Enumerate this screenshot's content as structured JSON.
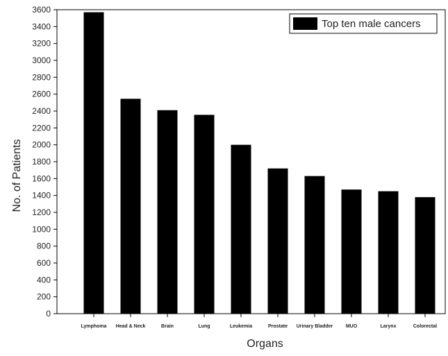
{
  "chart_data": {
    "type": "bar",
    "xlabel": "Organs",
    "ylabel": "No. of Patients",
    "ylim": [
      0,
      3600
    ],
    "ytick_step": 200,
    "grid": false,
    "legend_position": "top-right",
    "bar_color": "#000000",
    "categories": [
      "Lymphoma",
      "Head & Neck",
      "Brain",
      "Lung",
      "Leukemia",
      "Prostate",
      "Urinary Bladder",
      "MUO",
      "Larynx",
      "Colorectal"
    ],
    "series": [
      {
        "name": "Top ten male cancers",
        "values": [
          3570,
          2545,
          2410,
          2355,
          2000,
          1720,
          1630,
          1470,
          1450,
          1380
        ]
      }
    ]
  }
}
